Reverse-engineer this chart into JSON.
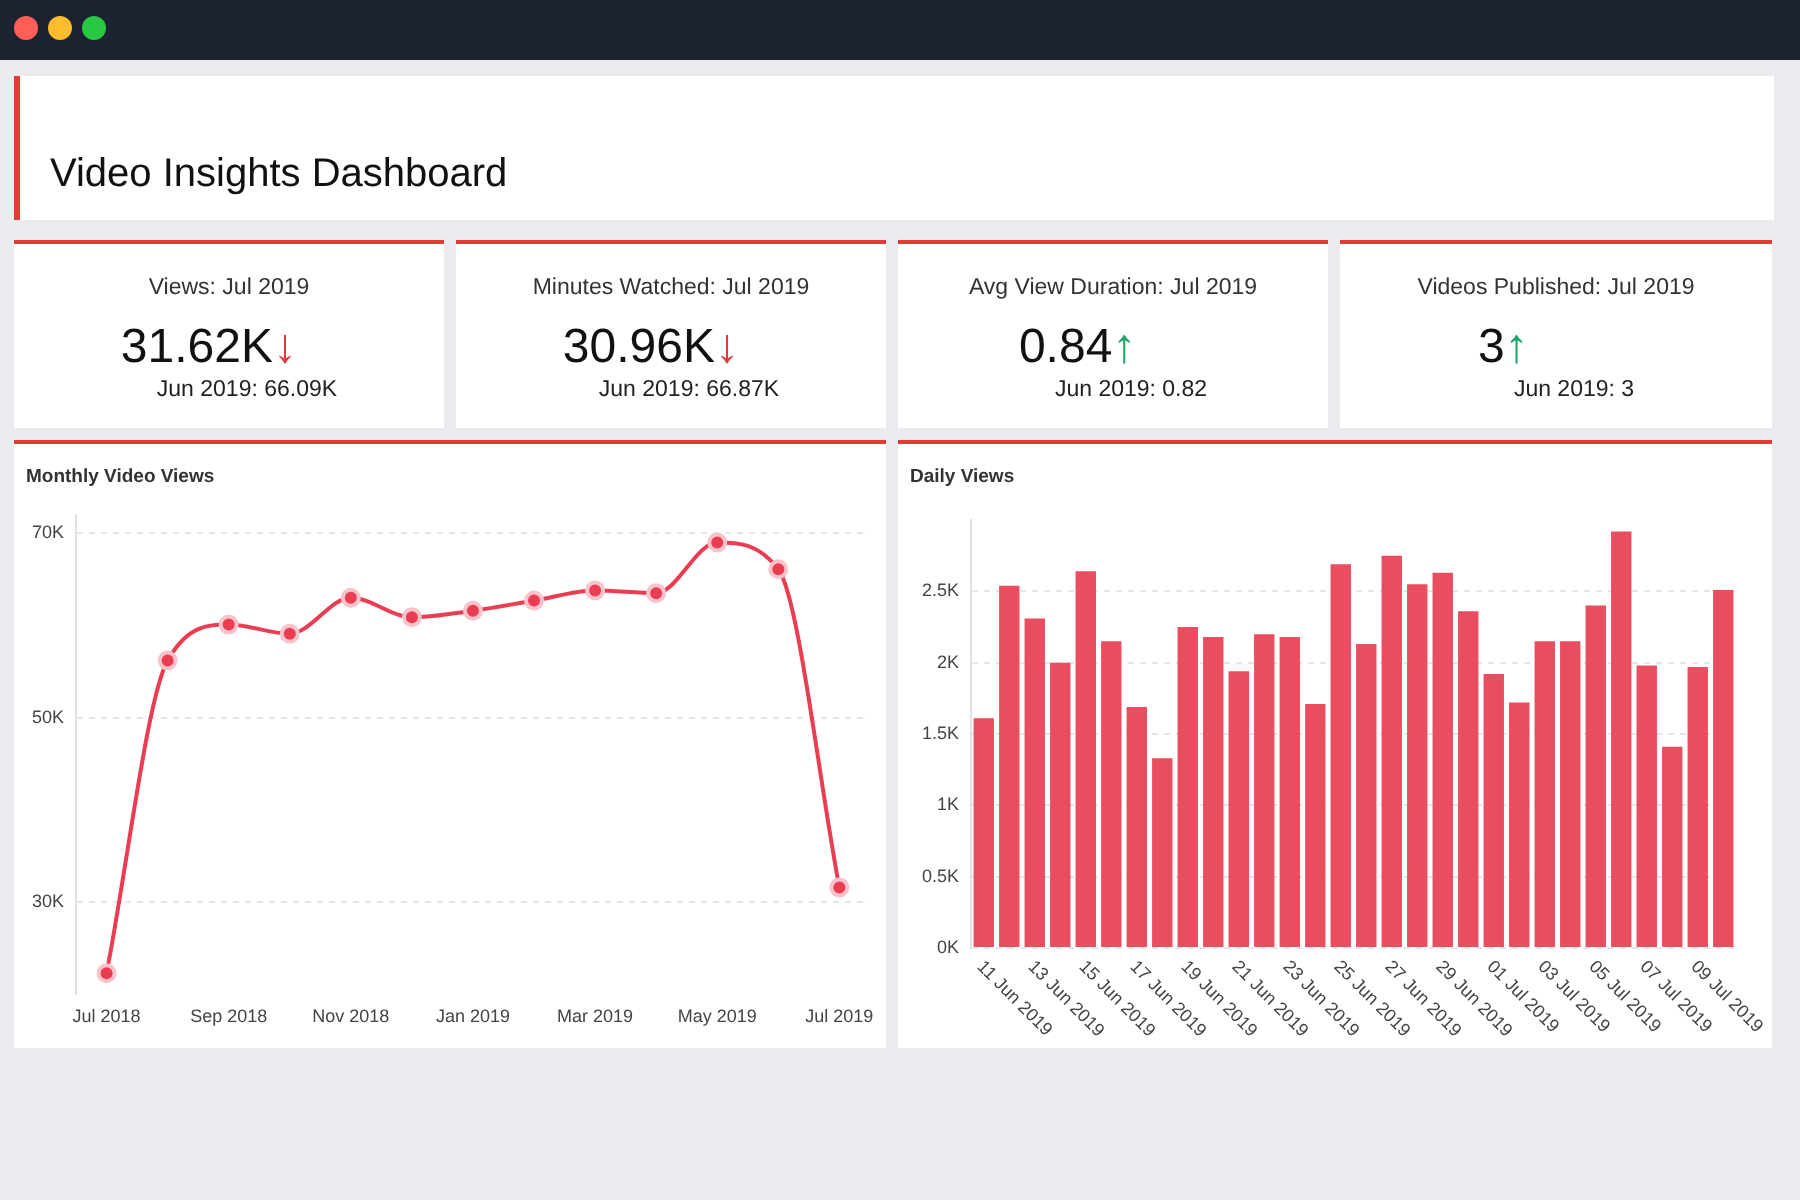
{
  "chart_data": [
    {
      "type": "other",
      "title": "Video Insights Dashboard"
    },
    {
      "type": "other",
      "title": "Views: Jul 2019",
      "annotations": [
        "31.62K↓",
        "Jun 2019: 66.09K"
      ],
      "color": "#e53935"
    },
    {
      "type": "other",
      "title": "Minutes Watched: Jul 2019",
      "annotations": [
        "30.96K↓",
        "Jun 2019: 66.87K"
      ],
      "color": "#e53935"
    },
    {
      "type": "other",
      "title": "Avg View Duration: Jul 2019",
      "annotations": [
        "0.84↑",
        "Jun 2019: 0.82"
      ],
      "color": "#1fa463"
    },
    {
      "type": "other",
      "title": "Videos Published: Jul 2019",
      "annotations": [
        "3↑",
        "Jun 2019: 3"
      ],
      "color": "#1fa463"
    },
    {
      "type": "line",
      "title": "Monthly Video Views",
      "categories": [
        "Jul 2018",
        null,
        "Sep 2018",
        null,
        "Nov 2018",
        null,
        "Jan 2019",
        null,
        "Mar 2019",
        null,
        "May 2019",
        null,
        "Jul 2019"
      ],
      "values": [
        22300,
        56200,
        60100,
        59100,
        63000,
        60900,
        61600,
        62700,
        63800,
        63500,
        69000,
        66100,
        31600
      ],
      "color": "#ea3d52",
      "ylim": [
        20000,
        72000
      ],
      "yticks": [
        {
          "value": 30000,
          "label": "30K"
        },
        {
          "value": 50000,
          "label": "50K"
        },
        {
          "value": 70000,
          "label": "70K"
        }
      ],
      "grid": "y",
      "marker": "circle"
    },
    {
      "type": "bar",
      "title": "Daily Views",
      "categories": [
        "11 Jun 2019",
        null,
        "13 Jun 2019",
        null,
        "15 Jun 2019",
        null,
        "17 Jun 2019",
        null,
        "19 Jun 2019",
        null,
        "21 Jun 2019",
        null,
        "23 Jun 2019",
        null,
        "25 Jun 2019",
        null,
        "27 Jun 2019",
        null,
        "29 Jun 2019",
        null,
        "01 Jul 2019",
        null,
        "03 Jul 2019",
        null,
        "05 Jul 2019",
        null,
        "07 Jul 2019",
        null,
        "09 Jul 2019",
        null
      ],
      "values": [
        1610,
        2540,
        2310,
        2000,
        2640,
        2150,
        1690,
        1330,
        2250,
        2180,
        1940,
        2200,
        2180,
        1710,
        2690,
        2130,
        2750,
        2550,
        2630,
        2360,
        1920,
        1720,
        2150,
        2150,
        2400,
        2920,
        1980,
        1410,
        1970,
        2510
      ],
      "color": "#eb4d60",
      "ylim": [
        0,
        3000
      ],
      "yticks": [
        {
          "value": 0,
          "label": "0K"
        },
        {
          "value": 500,
          "label": "0.5K"
        },
        {
          "value": 1000,
          "label": "1K"
        },
        {
          "value": 1500,
          "label": "1.5K"
        },
        {
          "value": 2000,
          "label": "2K"
        },
        {
          "value": 2500,
          "label": "2.5K"
        }
      ],
      "grid": "y"
    }
  ]
}
